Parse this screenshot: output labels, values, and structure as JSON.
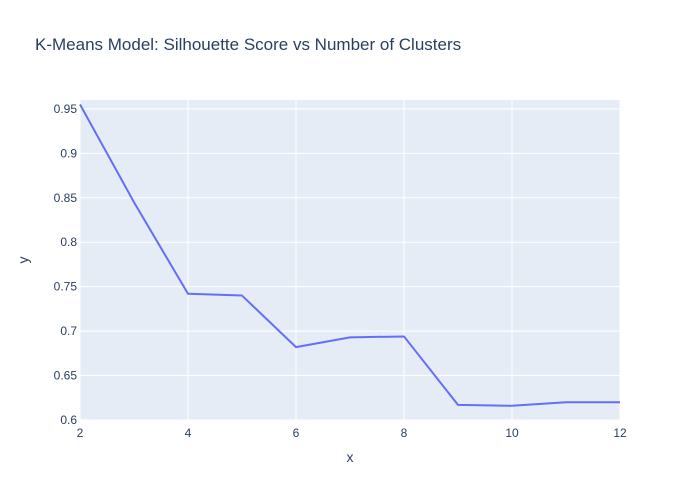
{
  "chart_data": {
    "type": "line",
    "title": "K-Means Model: Silhouette Score vs Number of Clusters",
    "xlabel": "x",
    "ylabel": "y",
    "xlim": [
      2,
      12
    ],
    "ylim": [
      0.6,
      0.96
    ],
    "x_ticks": [
      2,
      4,
      6,
      8,
      10,
      12
    ],
    "y_ticks": [
      0.6,
      0.65,
      0.7,
      0.75,
      0.8,
      0.85,
      0.9,
      0.95
    ],
    "x_tick_labels": [
      "2",
      "4",
      "6",
      "8",
      "10",
      "12"
    ],
    "y_tick_labels": [
      "0.6",
      "0.65",
      "0.7",
      "0.75",
      "0.8",
      "0.85",
      "0.9",
      "0.95"
    ],
    "grid": true,
    "legend": "none",
    "series": [
      {
        "color": "#636efa",
        "x": [
          2,
          3,
          4,
          5,
          6,
          7,
          8,
          9,
          10,
          11,
          12
        ],
        "y": [
          0.955,
          0.845,
          0.742,
          0.74,
          0.682,
          0.693,
          0.694,
          0.617,
          0.616,
          0.62,
          0.62
        ]
      }
    ]
  },
  "colors": {
    "plot_background": "#e5ecf6",
    "grid": "#ffffff",
    "text": "#2a3f5f",
    "line": "#636efa"
  }
}
